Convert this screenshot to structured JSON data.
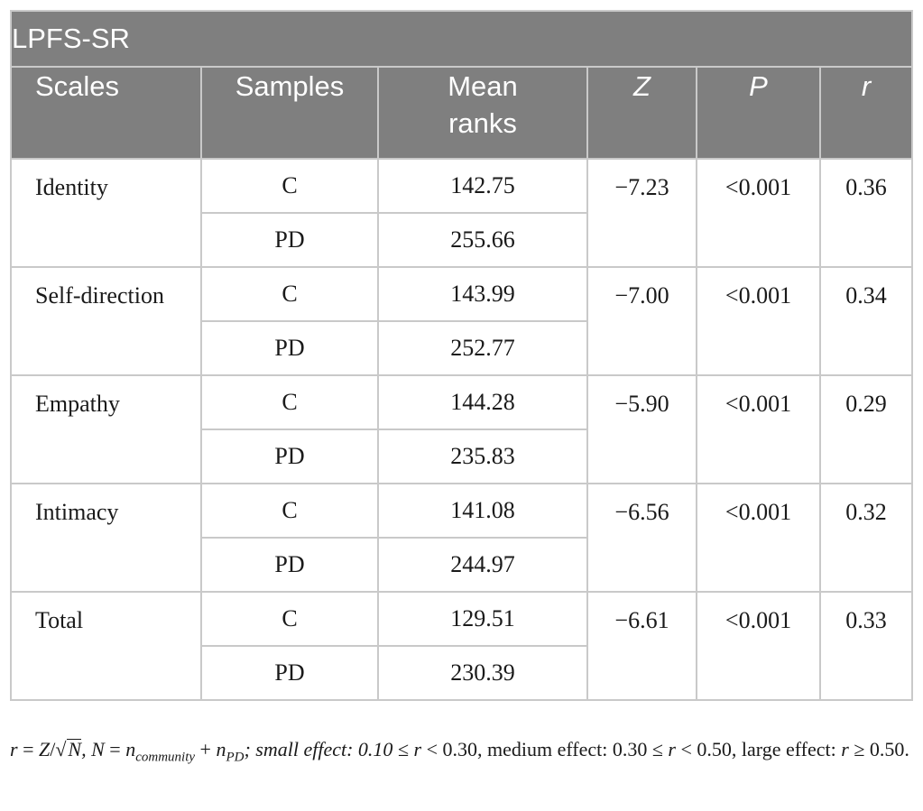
{
  "title": "LPFS-SR",
  "headers": {
    "scales": "Scales",
    "samples": "Samples",
    "mean_ranks_line1": "Mean",
    "mean_ranks_line2": "ranks",
    "z": "Z",
    "p": "P",
    "r": "r"
  },
  "rows": [
    {
      "scale": "Identity",
      "z": "−7.23",
      "p": "<0.001",
      "r": "0.36",
      "samples": [
        {
          "label": "C",
          "mean": "142.75"
        },
        {
          "label": "PD",
          "mean": "255.66"
        }
      ]
    },
    {
      "scale": "Self-direction",
      "z": "−7.00",
      "p": "<0.001",
      "r": "0.34",
      "samples": [
        {
          "label": "C",
          "mean": "143.99"
        },
        {
          "label": "PD",
          "mean": "252.77"
        }
      ]
    },
    {
      "scale": "Empathy",
      "z": "−5.90",
      "p": "<0.001",
      "r": "0.29",
      "samples": [
        {
          "label": "C",
          "mean": "144.28"
        },
        {
          "label": "PD",
          "mean": "235.83"
        }
      ]
    },
    {
      "scale": "Intimacy",
      "z": "−6.56",
      "p": "<0.001",
      "r": "0.32",
      "samples": [
        {
          "label": "C",
          "mean": "141.08"
        },
        {
          "label": "PD",
          "mean": "244.97"
        }
      ]
    },
    {
      "scale": "Total",
      "z": "−6.61",
      "p": "<0.001",
      "r": "0.33",
      "samples": [
        {
          "label": "C",
          "mean": "129.51"
        },
        {
          "label": "PD",
          "mean": "230.39"
        }
      ]
    }
  ],
  "footnote": {
    "f1": "r",
    "f2": " = ",
    "f3": "Z",
    "f4": "/√",
    "f5": "N",
    "f6": ", ",
    "f7": "N",
    "f8": " = ",
    "f9": "n",
    "f10": "community",
    "f11": " + ",
    "f12": "n",
    "f13": "PD",
    "f14": "; small effect: 0.10 ≤ ",
    "f15": "r",
    "f16": " < 0.30, medium effect: 0.30 ≤ ",
    "f17": "r",
    "f18": " < 0.50, large effect: ",
    "f19": "r",
    "f20": " ≥ 0.50."
  }
}
